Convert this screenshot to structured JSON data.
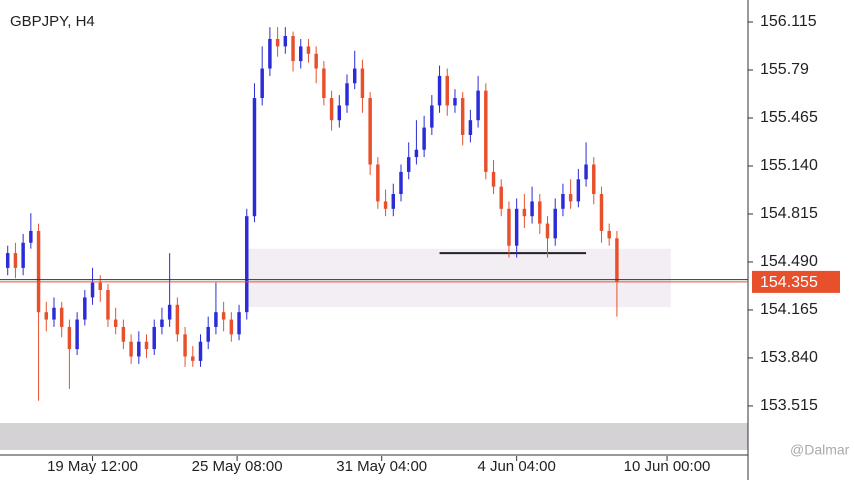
{
  "chart_data": {
    "type": "candlestick",
    "title": "GBPJPY, H4",
    "up_color": "#2b2bd8",
    "down_color": "#e8502c",
    "xlim": [
      -1,
      96
    ],
    "ylim": [
      153.176,
      156.264
    ],
    "xticks": [
      {
        "value": 11,
        "label": "19 May 12:00"
      },
      {
        "value": 29.75,
        "label": "25 May 08:00"
      },
      {
        "value": 48.5,
        "label": "31 May 04:00"
      },
      {
        "value": 66,
        "label": "4 Jun 04:00"
      },
      {
        "value": 85.5,
        "label": "10 Jun 00:00"
      }
    ],
    "yticks": [
      156.115,
      155.79,
      155.465,
      {
        "value": 155.14,
        "label": "155.140"
      },
      154.815,
      {
        "value": 154.49,
        "label": "154.490"
      },
      154.165,
      {
        "value": 153.84,
        "label": "153.840"
      },
      153.515
    ],
    "open": [
      154.45,
      154.55,
      154.45,
      154.62,
      154.7,
      154.15,
      154.1,
      154.18,
      154.05,
      153.9,
      154.1,
      154.25,
      154.35,
      154.3,
      154.1,
      154.05,
      153.95,
      153.85,
      153.95,
      153.9,
      154.05,
      154.1,
      154.2,
      154.0,
      153.85,
      153.82,
      153.95,
      154.05,
      154.15,
      154.1,
      154.0,
      154.15,
      154.8,
      155.6,
      155.8,
      156.0,
      155.95,
      156.02,
      155.85,
      155.95,
      155.9,
      155.8,
      155.6,
      155.45,
      155.55,
      155.7,
      155.8,
      155.6,
      155.15,
      154.9,
      154.85,
      154.95,
      155.1,
      155.2,
      155.25,
      155.4,
      155.55,
      155.75,
      155.55,
      155.6,
      155.35,
      155.45,
      155.65,
      155.1,
      155.0,
      154.85,
      154.6,
      154.85,
      154.8,
      154.9,
      154.75,
      154.65,
      154.85,
      154.95,
      154.9,
      155.05,
      155.15,
      154.95,
      154.7,
      154.65
    ],
    "high": [
      154.6,
      154.62,
      154.68,
      154.82,
      154.75,
      154.22,
      154.25,
      154.22,
      154.1,
      154.15,
      154.3,
      154.45,
      154.4,
      154.34,
      154.18,
      154.1,
      154.0,
      154.02,
      154.0,
      154.1,
      154.18,
      154.55,
      154.25,
      154.05,
      153.92,
      154.0,
      154.12,
      154.35,
      154.22,
      154.15,
      154.2,
      154.85,
      155.7,
      155.95,
      156.08,
      156.08,
      156.08,
      156.05,
      156.0,
      156.0,
      155.95,
      155.85,
      155.65,
      155.62,
      155.76,
      155.92,
      155.86,
      155.64,
      155.2,
      154.98,
      155.02,
      155.15,
      155.3,
      155.45,
      155.48,
      155.62,
      155.82,
      155.8,
      155.66,
      155.64,
      155.52,
      155.75,
      155.7,
      155.18,
      155.05,
      154.9,
      154.92,
      154.95,
      155.0,
      154.95,
      154.8,
      154.92,
      155.02,
      155.05,
      155.12,
      155.3,
      155.2,
      155.0,
      154.75,
      154.7
    ],
    "low": [
      154.4,
      154.38,
      154.4,
      154.58,
      153.55,
      154.02,
      154.05,
      153.98,
      153.63,
      153.86,
      154.06,
      154.2,
      154.22,
      154.05,
      154.0,
      153.9,
      153.8,
      153.8,
      153.84,
      153.86,
      154.0,
      154.05,
      153.95,
      153.78,
      153.78,
      153.78,
      153.9,
      154.0,
      154.02,
      153.95,
      153.96,
      154.1,
      154.76,
      155.55,
      155.75,
      155.88,
      155.9,
      155.78,
      155.8,
      155.84,
      155.7,
      155.55,
      155.38,
      155.4,
      155.5,
      155.66,
      155.5,
      155.08,
      154.85,
      154.8,
      154.8,
      154.9,
      155.05,
      155.15,
      155.2,
      155.35,
      155.5,
      155.48,
      155.5,
      155.28,
      155.3,
      155.4,
      155.05,
      154.95,
      154.8,
      154.52,
      154.52,
      154.72,
      154.75,
      154.68,
      154.52,
      154.6,
      154.8,
      154.85,
      154.86,
      155.0,
      154.88,
      154.62,
      154.6,
      154.12
    ],
    "close": [
      154.55,
      154.45,
      154.62,
      154.7,
      154.15,
      154.1,
      154.18,
      154.05,
      153.9,
      154.1,
      154.25,
      154.35,
      154.3,
      154.1,
      154.05,
      153.95,
      153.85,
      153.95,
      153.9,
      154.05,
      154.1,
      154.2,
      154.0,
      153.85,
      153.82,
      153.95,
      154.05,
      154.15,
      154.1,
      154.0,
      154.15,
      154.8,
      155.6,
      155.8,
      156.0,
      155.95,
      156.02,
      155.85,
      155.95,
      155.9,
      155.8,
      155.6,
      155.45,
      155.55,
      155.7,
      155.8,
      155.6,
      155.15,
      154.9,
      154.85,
      154.95,
      155.1,
      155.2,
      155.25,
      155.4,
      155.55,
      155.75,
      155.55,
      155.6,
      155.35,
      155.45,
      155.65,
      155.1,
      155.0,
      154.85,
      154.6,
      154.85,
      154.8,
      154.9,
      154.75,
      154.65,
      154.85,
      154.95,
      154.9,
      155.05,
      155.15,
      154.95,
      154.7,
      154.65,
      154.355
    ],
    "current_price": {
      "value": 154.355,
      "label": "154.355",
      "color": "#e8502c"
    },
    "ask_line": 154.37,
    "zone": {
      "from": 154.185,
      "to": 154.58,
      "start": 31,
      "end": 86,
      "color": "#f3eef4"
    },
    "level_line": {
      "value": 154.55,
      "start": 56,
      "end": 75
    },
    "watermark": "@Dalmar"
  }
}
